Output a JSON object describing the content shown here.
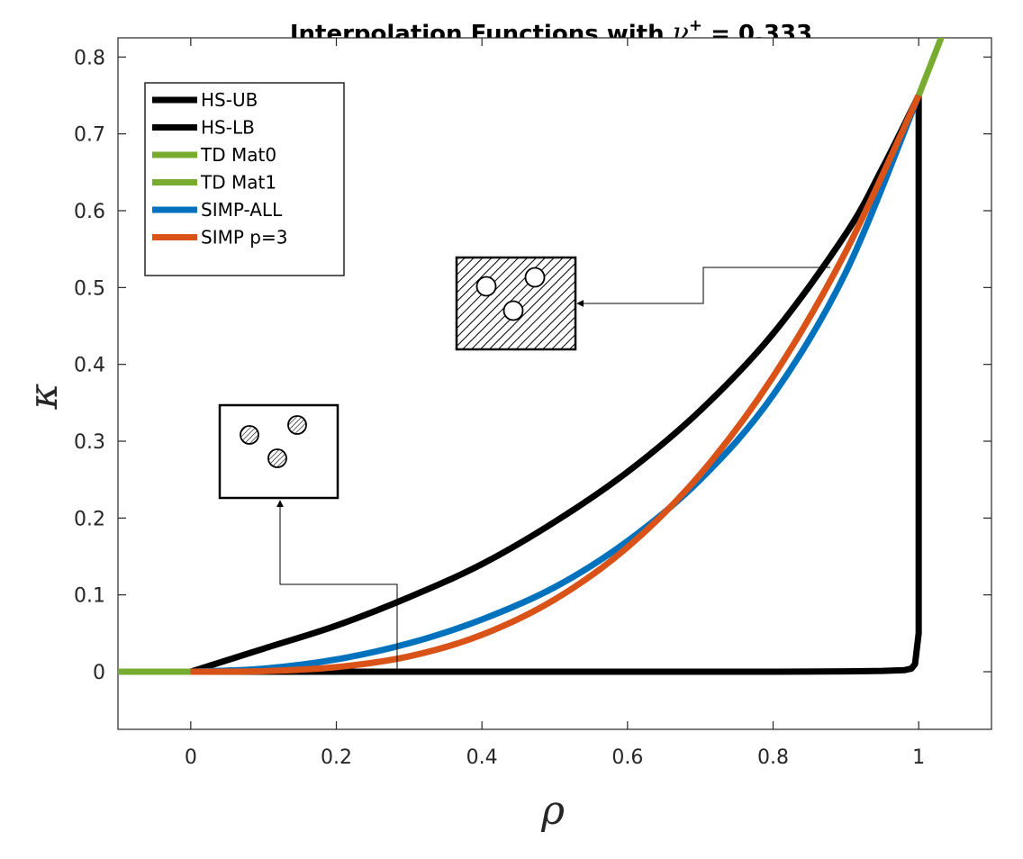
{
  "chart_data": {
    "type": "line",
    "title": {
      "prefix": "Interpolation Functions with ",
      "symbol": "ν",
      "superscript": "+",
      "suffix": " = 0.333"
    },
    "xlabel": "ρ",
    "ylabel": "κ",
    "xlim": [
      -0.1,
      1.1
    ],
    "ylim": [
      -0.075,
      0.825
    ],
    "xticks": [
      0,
      0.2,
      0.4,
      0.6,
      0.8,
      1
    ],
    "xtick_labels": [
      "0",
      "0.2",
      "0.4",
      "0.6",
      "0.8",
      "1"
    ],
    "yticks": [
      0,
      0.1,
      0.2,
      0.3,
      0.4,
      0.5,
      0.6,
      0.7,
      0.8
    ],
    "ytick_labels": [
      "0",
      "0.1",
      "0.2",
      "0.3",
      "0.4",
      "0.5",
      "0.6",
      "0.7",
      "0.8"
    ],
    "grid": false,
    "legend_position": "top-left",
    "series": [
      {
        "name": "HS-UB",
        "color": "#000000",
        "x": [
          0,
          0.1,
          0.2,
          0.3,
          0.4,
          0.5,
          0.6,
          0.7,
          0.8,
          0.9,
          0.95,
          1.0
        ],
        "y": [
          0,
          0.03,
          0.06,
          0.097,
          0.14,
          0.195,
          0.26,
          0.34,
          0.44,
          0.57,
          0.655,
          0.75
        ]
      },
      {
        "name": "HS-LB",
        "color": "#000000",
        "x": [
          0,
          0.2,
          0.4,
          0.6,
          0.8,
          0.9,
          0.95,
          0.98,
          0.99,
          0.995,
          1.0,
          1.0
        ],
        "y": [
          0,
          0,
          0,
          0,
          0,
          0.0005,
          0.001,
          0.002,
          0.004,
          0.01,
          0.05,
          0.75
        ]
      },
      {
        "name": "TD Mat0",
        "color": "#77ac30",
        "x": [
          -0.1,
          0.0
        ],
        "y": [
          0,
          0
        ]
      },
      {
        "name": "TD Mat1",
        "color": "#77ac30",
        "x": [
          1.0,
          1.033
        ],
        "y": [
          0.75,
          0.83
        ]
      },
      {
        "name": "SIMP-ALL",
        "color": "#0072bd",
        "x": [
          0,
          0.1,
          0.2,
          0.3,
          0.4,
          0.5,
          0.6,
          0.7,
          0.8,
          0.9,
          1.0
        ],
        "y": [
          0,
          0.004,
          0.016,
          0.037,
          0.068,
          0.11,
          0.17,
          0.25,
          0.36,
          0.52,
          0.75
        ]
      },
      {
        "name": "SIMP p=3",
        "color": "#d95319",
        "x": [
          0,
          0.1,
          0.2,
          0.3,
          0.4,
          0.5,
          0.6,
          0.7,
          0.8,
          0.9,
          1.0
        ],
        "y": [
          0,
          0.00075,
          0.006,
          0.02,
          0.048,
          0.094,
          0.162,
          0.257,
          0.384,
          0.547,
          0.75
        ]
      }
    ]
  }
}
